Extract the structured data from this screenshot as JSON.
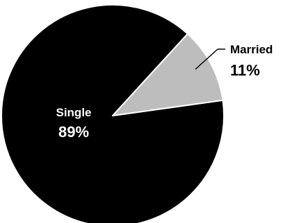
{
  "chart_data": {
    "type": "pie",
    "categories": [
      "Single",
      "Married"
    ],
    "values": [
      89,
      11
    ],
    "value_labels": [
      "89%",
      "11%"
    ],
    "colors": [
      "#000000",
      "#bdbdbd"
    ],
    "label_text_colors": [
      "#ffffff",
      "#000000"
    ],
    "title": "",
    "legend": "none"
  }
}
